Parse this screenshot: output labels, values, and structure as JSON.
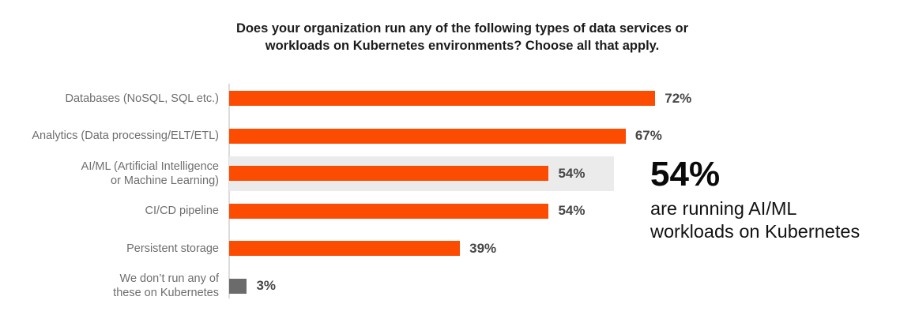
{
  "header": {
    "title_line1": "Does your organization run any of the following types of data services or",
    "title_line2": "workloads on Kubernetes environments? Choose all that apply."
  },
  "chart_data": {
    "type": "bar",
    "orientation": "horizontal",
    "unit": "%",
    "title": "Does your organization run any of the following types of data services or workloads on Kubernetes environments? Choose all that apply.",
    "categories": [
      "Databases (NoSQL, SQL etc.)",
      "Analytics (Data processing/ELT/ETL)",
      "AI/ML (Artificial Intelligence or Machine Learning)",
      "CI/CD pipeline",
      "Persistent storage",
      "We don’t run any of these on Kubernetes"
    ],
    "category_label_lines": [
      [
        "Databases (NoSQL, SQL etc.)"
      ],
      [
        "Analytics (Data processing/ELT/ETL)"
      ],
      [
        "AI/ML (Artificial Intelligence",
        "or Machine Learning)"
      ],
      [
        "CI/CD pipeline"
      ],
      [
        "Persistent storage"
      ],
      [
        "We don’t run any of",
        "these on Kubernetes"
      ]
    ],
    "values": [
      72,
      67,
      54,
      54,
      39,
      3
    ],
    "value_labels": [
      "72%",
      "67%",
      "54%",
      "54%",
      "39%",
      "3%"
    ],
    "bar_colors": [
      "#fc4c02",
      "#fc4c02",
      "#fc4c02",
      "#fc4c02",
      "#fc4c02",
      "#6b6b6b"
    ],
    "highlighted_index": 2,
    "highlighted_category": "AI/ML (Artificial Intelligence or Machine Learning)",
    "xlim": [
      0,
      100
    ],
    "grid": false,
    "value_label_position": "end-of-bar",
    "legend": null
  },
  "callout": {
    "stat": "54%",
    "line1": "are running AI/ML",
    "line2": "workloads on Kubernetes"
  },
  "colors": {
    "accent_orange": "#fc4c02",
    "gray_bar": "#6b6b6b",
    "highlight_band": "#ebebeb",
    "axis_line": "#dcdcdc",
    "category_label": "#6e6e6e",
    "value_label": "#474747",
    "title_text": "#1b1b1b",
    "callout_text": "#0a0a0a",
    "background": "#ffffff"
  }
}
